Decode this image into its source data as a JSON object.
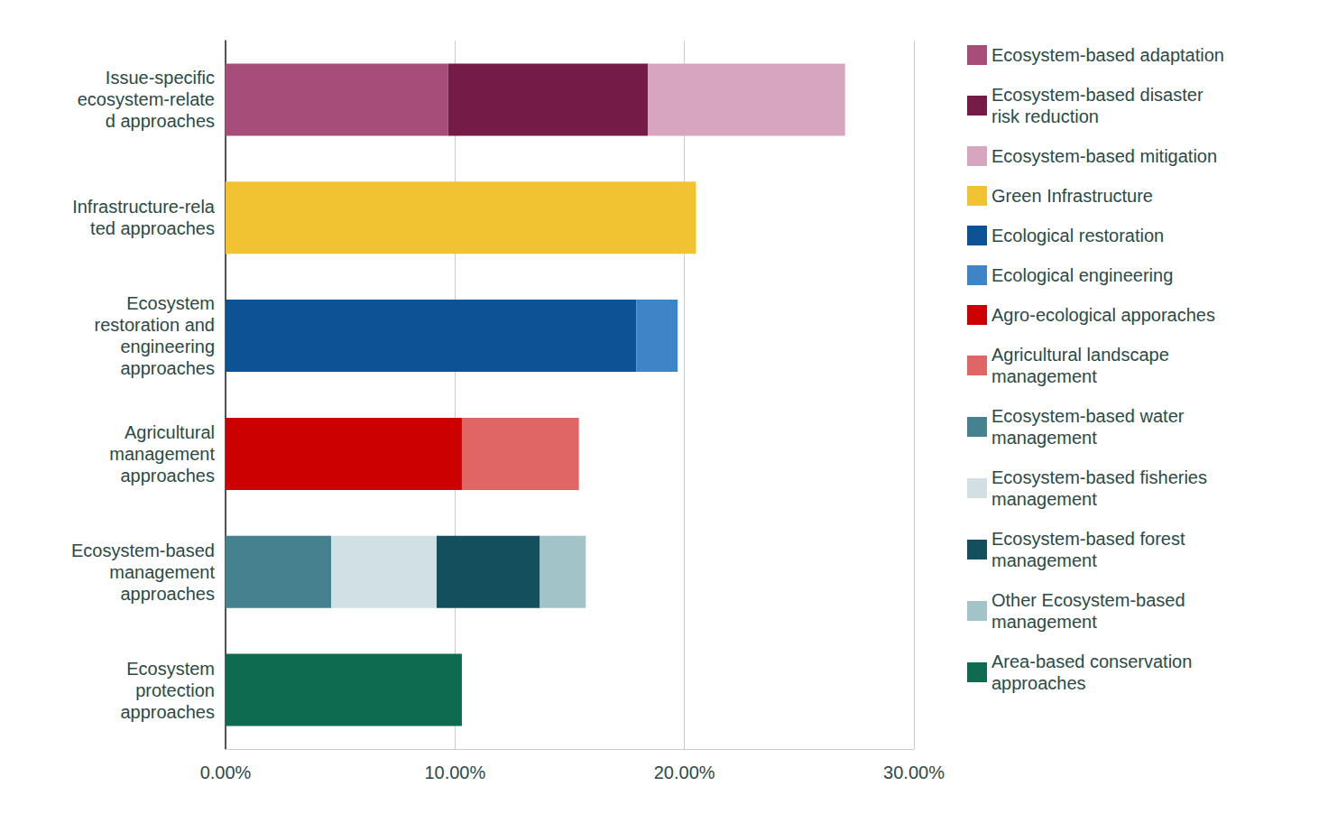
{
  "chart_data": {
    "type": "bar",
    "orientation": "horizontal",
    "stacked": true,
    "grid": true,
    "legend": "right",
    "data_labels": false,
    "categories": [
      "Issue-specific\necosystem-relate\nd approaches",
      "Infrastructure-rela\nted approaches",
      "Ecosystem\nrestoration and\nengineering\napproaches",
      "Agricultural\nmanagement\napproaches",
      "Ecosystem-based\nmanagement\napproaches",
      "Ecosystem\nprotection\napproaches"
    ],
    "xlim": [
      0,
      30
    ],
    "xticks": [
      {
        "value": 0,
        "label": "0.00%"
      },
      {
        "value": 10,
        "label": "10.00%"
      },
      {
        "value": 20,
        "label": "20.00%"
      },
      {
        "value": 30,
        "label": "30.00%"
      }
    ],
    "series": [
      {
        "name": "Ecosystem-based adaptation",
        "color": "#a64d79",
        "values": [
          9.7,
          null,
          null,
          null,
          null,
          null
        ]
      },
      {
        "name": "Ecosystem-based disaster\nrisk reduction",
        "color": "#741b47",
        "values": [
          8.7,
          null,
          null,
          null,
          null,
          null
        ]
      },
      {
        "name": "Ecosystem-based mitigation",
        "color": "#d5a6bd",
        "values": [
          8.6,
          null,
          null,
          null,
          null,
          null
        ]
      },
      {
        "name": "Green Infrastructure",
        "color": "#f1c232",
        "values": [
          null,
          20.5,
          null,
          null,
          null,
          null
        ]
      },
      {
        "name": "Ecological restoration",
        "color": "#0b5394",
        "values": [
          null,
          null,
          17.9,
          null,
          null,
          null
        ]
      },
      {
        "name": "Ecological engineering",
        "color": "#3d85c6",
        "values": [
          null,
          null,
          1.8,
          null,
          null,
          null
        ]
      },
      {
        "name": "Agro-ecological apporaches",
        "color": "#cc0000",
        "values": [
          null,
          null,
          null,
          10.3,
          null,
          null
        ]
      },
      {
        "name": "Agricultural landscape\nmanagement",
        "color": "#e06666",
        "values": [
          null,
          null,
          null,
          5.1,
          null,
          null
        ]
      },
      {
        "name": "Ecosystem-based water\nmanagement",
        "color": "#45818e",
        "values": [
          null,
          null,
          null,
          null,
          4.6,
          null
        ]
      },
      {
        "name": "Ecosystem-based fisheries\nmanagement",
        "color": "#d0e0e3",
        "values": [
          null,
          null,
          null,
          null,
          4.6,
          null
        ]
      },
      {
        "name": "Ecosystem-based forest\nmanagement",
        "color": "#134f5c",
        "values": [
          null,
          null,
          null,
          null,
          4.5,
          null
        ]
      },
      {
        "name": "Other Ecosystem-based\nmanagement",
        "color": "#a2c4c9",
        "values": [
          null,
          null,
          null,
          null,
          2.0,
          null
        ]
      },
      {
        "name": "Area-based conservation\napproaches",
        "color": "#0f6b50",
        "values": [
          null,
          null,
          null,
          null,
          null,
          10.3
        ]
      }
    ]
  }
}
